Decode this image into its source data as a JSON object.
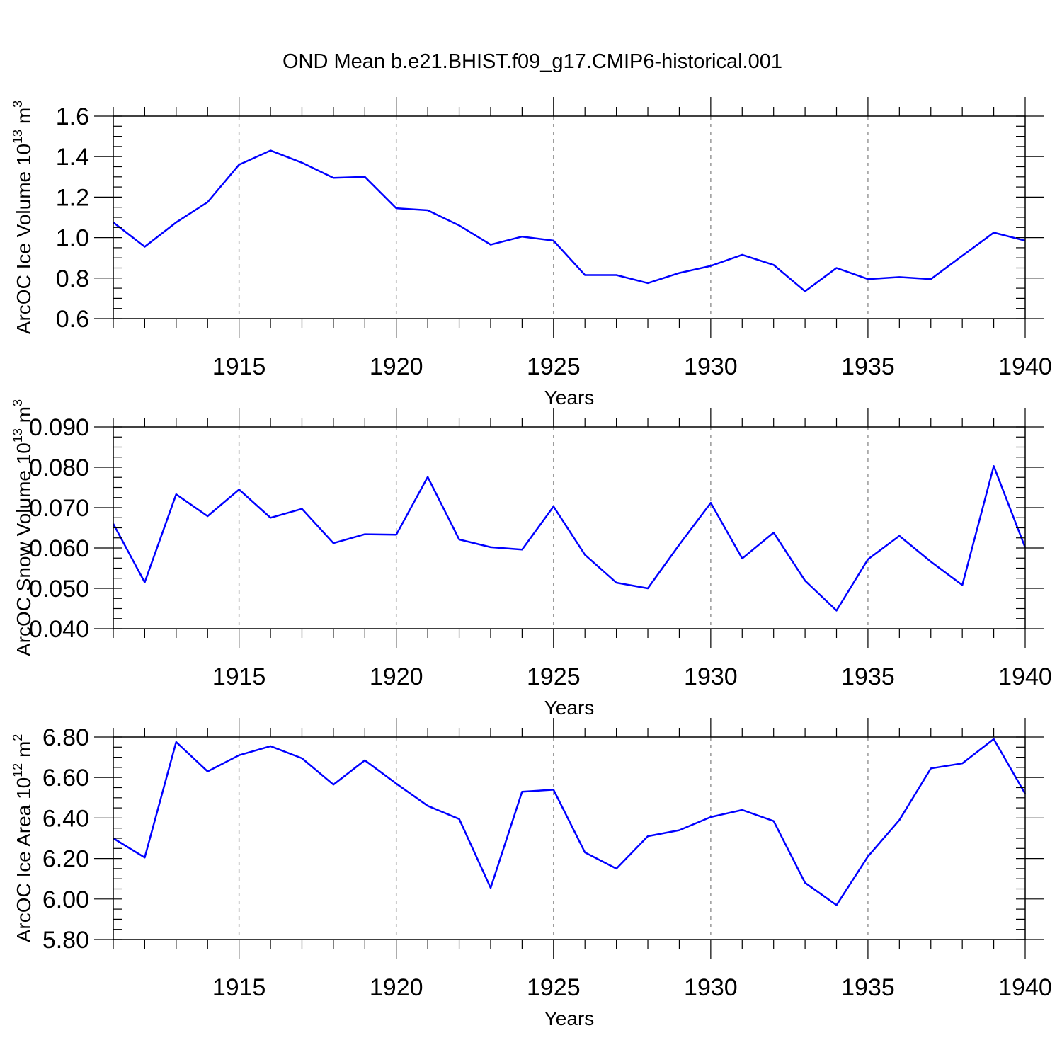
{
  "figure": {
    "title": "OND Mean b.e21.BHIST.f09_g17.CMIP6-historical.001"
  },
  "style": {
    "line_color": "#0000ff",
    "axis_color": "#000000",
    "grid_color": "#999999"
  },
  "chart_data": [
    {
      "type": "line",
      "panel": "top",
      "title": "",
      "xlabel": "Years",
      "ylabel": {
        "main": "ArcOC Ice Volume 10",
        "exp": "13",
        "unit": " m",
        "unit_exp": "3"
      },
      "xlim": [
        1911,
        1940
      ],
      "ylim": [
        0.6,
        1.6
      ],
      "xticks": [
        1915,
        1920,
        1925,
        1930,
        1935,
        1940
      ],
      "xtick_labels": [
        "1915",
        "1920",
        "1925",
        "1930",
        "1935",
        "1940"
      ],
      "yticks": [
        0.6,
        0.8,
        1.0,
        1.2,
        1.4,
        1.6
      ],
      "ytick_labels": [
        "0.6",
        "0.8",
        "1.0",
        "1.2",
        "1.4",
        "1.6"
      ],
      "y_minor_step": 0.05,
      "x": [
        1911,
        1912,
        1913,
        1914,
        1915,
        1916,
        1917,
        1918,
        1919,
        1920,
        1921,
        1922,
        1923,
        1924,
        1925,
        1926,
        1927,
        1928,
        1929,
        1930,
        1931,
        1932,
        1933,
        1934,
        1935,
        1936,
        1937,
        1938,
        1939,
        1940
      ],
      "series": [
        {
          "name": "ArcOC Ice Volume",
          "values": [
            1.075,
            0.955,
            1.075,
            1.175,
            1.36,
            1.43,
            1.37,
            1.295,
            1.3,
            1.145,
            1.135,
            1.06,
            0.965,
            1.005,
            0.985,
            0.815,
            0.815,
            0.775,
            0.825,
            0.86,
            0.915,
            0.865,
            0.735,
            0.85,
            0.795,
            0.805,
            0.795,
            0.91,
            1.025,
            0.985
          ]
        }
      ]
    },
    {
      "type": "line",
      "panel": "middle",
      "title": "",
      "xlabel": "Years",
      "ylabel": {
        "main": "ArcOC Snow Volume 10",
        "exp": "13",
        "unit": " m",
        "unit_exp": "3"
      },
      "xlim": [
        1911,
        1940
      ],
      "ylim": [
        0.04,
        0.09
      ],
      "xticks": [
        1915,
        1920,
        1925,
        1930,
        1935,
        1940
      ],
      "xtick_labels": [
        "1915",
        "1920",
        "1925",
        "1930",
        "1935",
        "1940"
      ],
      "yticks": [
        0.04,
        0.05,
        0.06,
        0.07,
        0.08,
        0.09
      ],
      "ytick_labels": [
        "0.040",
        "0.050",
        "0.060",
        "0.070",
        "0.080",
        "0.090"
      ],
      "y_minor_step": 0.0025,
      "x": [
        1911,
        1912,
        1913,
        1914,
        1915,
        1916,
        1917,
        1918,
        1919,
        1920,
        1921,
        1922,
        1923,
        1924,
        1925,
        1926,
        1927,
        1928,
        1929,
        1930,
        1931,
        1932,
        1933,
        1934,
        1935,
        1936,
        1937,
        1938,
        1939,
        1940
      ],
      "series": [
        {
          "name": "ArcOC Snow Volume",
          "values": [
            0.066,
            0.0515,
            0.0733,
            0.0679,
            0.0745,
            0.0675,
            0.0697,
            0.0612,
            0.0634,
            0.0633,
            0.0776,
            0.0621,
            0.0602,
            0.0596,
            0.0703,
            0.0583,
            0.0514,
            0.05,
            0.0608,
            0.0712,
            0.0574,
            0.0638,
            0.0519,
            0.0445,
            0.0572,
            0.063,
            0.0566,
            0.0508,
            0.0803,
            0.0601
          ]
        }
      ]
    },
    {
      "type": "line",
      "panel": "bottom",
      "title": "",
      "xlabel": "Years",
      "ylabel": {
        "main": "ArcOC Ice Area 10",
        "exp": "12",
        "unit": " m",
        "unit_exp": "2"
      },
      "xlim": [
        1911,
        1940
      ],
      "ylim": [
        5.8,
        6.8
      ],
      "xticks": [
        1915,
        1920,
        1925,
        1930,
        1935,
        1940
      ],
      "xtick_labels": [
        "1915",
        "1920",
        "1925",
        "1930",
        "1935",
        "1940"
      ],
      "yticks": [
        5.8,
        6.0,
        6.2,
        6.4,
        6.6,
        6.8
      ],
      "ytick_labels": [
        "5.80",
        "6.00",
        "6.20",
        "6.40",
        "6.60",
        "6.80"
      ],
      "y_minor_step": 0.05,
      "x": [
        1911,
        1912,
        1913,
        1914,
        1915,
        1916,
        1917,
        1918,
        1919,
        1920,
        1921,
        1922,
        1923,
        1924,
        1925,
        1926,
        1927,
        1928,
        1929,
        1930,
        1931,
        1932,
        1933,
        1934,
        1935,
        1936,
        1937,
        1938,
        1939,
        1940
      ],
      "series": [
        {
          "name": "ArcOC Ice Area",
          "values": [
            6.3,
            6.205,
            6.775,
            6.63,
            6.71,
            6.755,
            6.695,
            6.565,
            6.685,
            6.57,
            6.46,
            6.395,
            6.055,
            6.53,
            6.54,
            6.23,
            6.15,
            6.31,
            6.34,
            6.405,
            6.44,
            6.385,
            6.08,
            5.97,
            6.21,
            6.39,
            6.645,
            6.67,
            6.79,
            6.52
          ]
        }
      ]
    }
  ]
}
